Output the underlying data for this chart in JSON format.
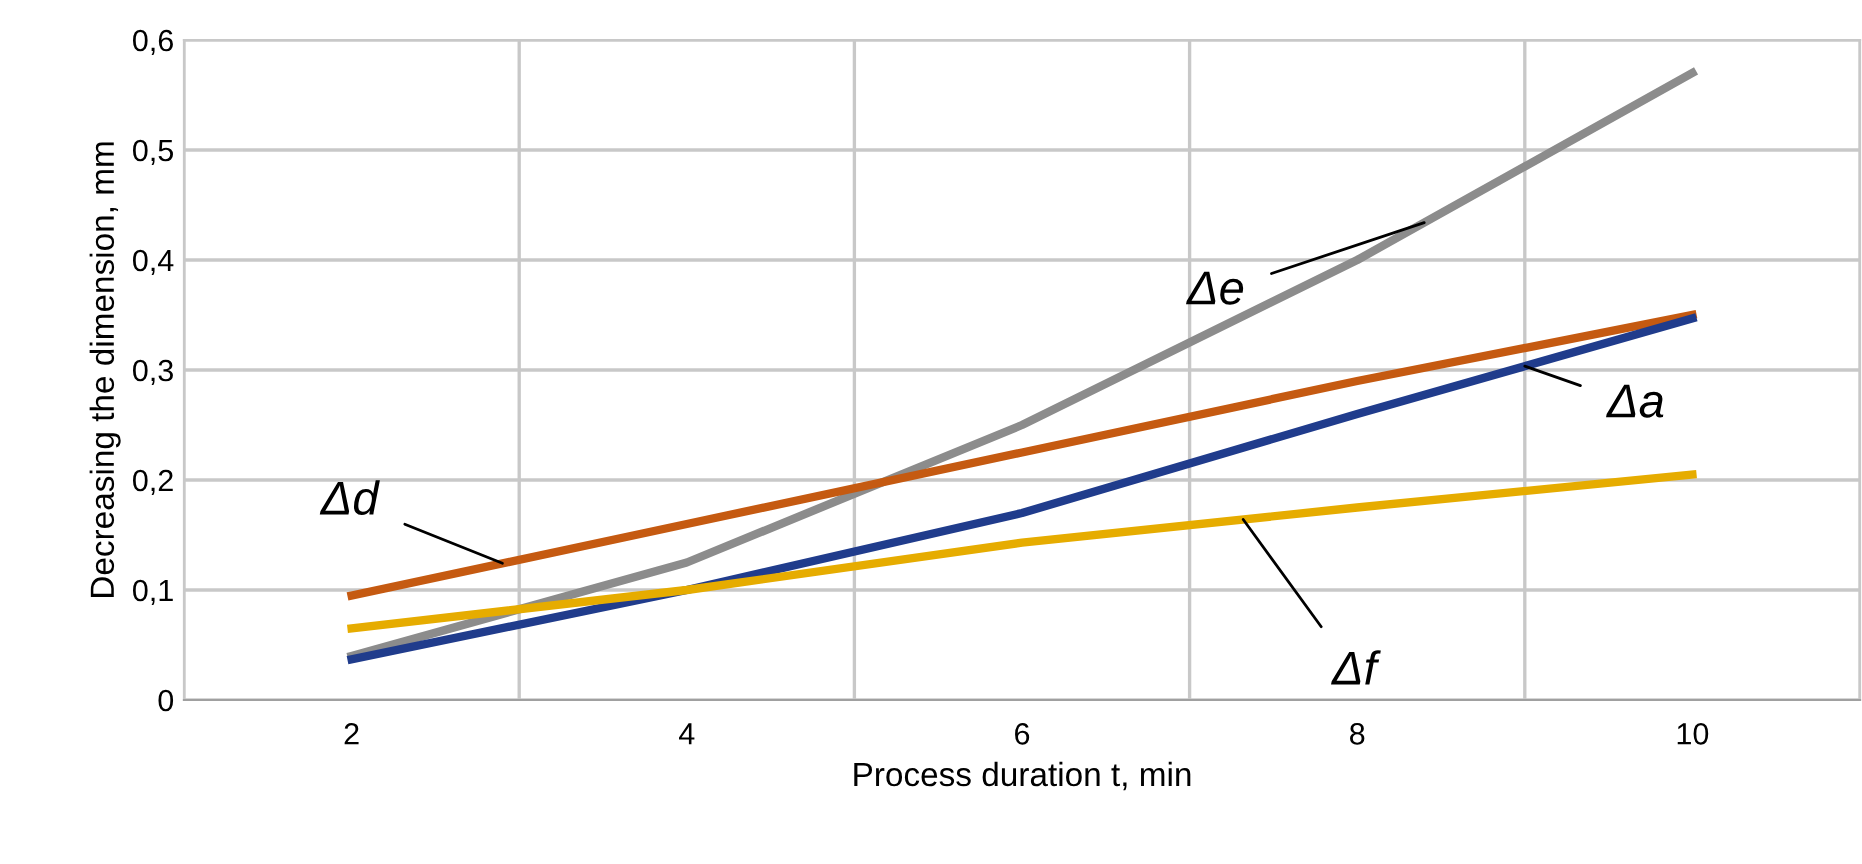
{
  "chart_data": {
    "type": "line",
    "xlabel": "Process duration t, min",
    "ylabel": "Decreasing the dimension, mm",
    "categories": [
      "2",
      "4",
      "6",
      "8",
      "10"
    ],
    "series": [
      {
        "name": "Δe",
        "color": "#8c8c8c",
        "values": [
          0.04,
          0.125,
          0.25,
          0.4,
          0.57
        ]
      },
      {
        "name": "Δd",
        "color": "#c55a11",
        "values": [
          0.095,
          0.16,
          0.225,
          0.29,
          0.35
        ]
      },
      {
        "name": "Δa",
        "color": "#203c8c",
        "values": [
          0.037,
          0.1,
          0.17,
          0.26,
          0.347
        ]
      },
      {
        "name": "Δf",
        "color": "#e6ac00",
        "values": [
          0.065,
          0.1,
          0.143,
          0.175,
          0.205
        ]
      }
    ],
    "ylim": [
      0,
      0.6
    ],
    "yticks": [
      0,
      {
        "value": 0.1,
        "label": "0,1"
      },
      {
        "value": 0.2,
        "label": "0,2"
      },
      {
        "value": 0.3,
        "label": "0,3"
      },
      {
        "value": 0.4,
        "label": "0,4"
      },
      {
        "value": 0.5,
        "label": "0,5"
      },
      {
        "value": 0.6,
        "label": "0,6"
      }
    ],
    "grid": true,
    "legend": false,
    "marker": "none",
    "line_style": "solid"
  }
}
